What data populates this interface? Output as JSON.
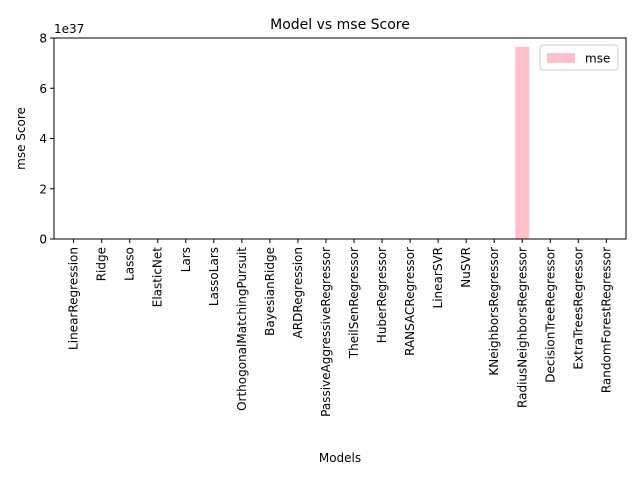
{
  "chart_data": {
    "type": "bar",
    "title": "Model vs mse Score",
    "xlabel": "Models",
    "ylabel": "mse Score",
    "axis_multiplier": "1e37",
    "ylim": [
      0,
      8e+37
    ],
    "yticks": [
      0,
      2e+37,
      4e+37,
      6e+37,
      8e+37
    ],
    "ytick_labels": [
      "0",
      "2",
      "4",
      "6",
      "8"
    ],
    "grid": false,
    "legend_position": "top-right",
    "categories": [
      "LinearRegression",
      "Ridge",
      "Lasso",
      "ElasticNet",
      "Lars",
      "LassoLars",
      "OrthogonalMatchingPursuit",
      "BayesianRidge",
      "ARDRegression",
      "PassiveAggressiveRegressor",
      "TheilSenRegressor",
      "HuberRegressor",
      "RANSACRegressor",
      "LinearSVR",
      "NuSVR",
      "KNeighborsRegressor",
      "RadiusNeighborsRegressor",
      "DecisionTreeRegressor",
      "ExtraTreesRegressor",
      "RandomForestRegressor"
    ],
    "series": [
      {
        "name": "mse",
        "color": "#ffc0cb",
        "values": [
          0,
          0,
          0,
          0,
          0,
          0,
          0,
          0,
          0,
          0,
          0,
          0,
          0,
          0,
          0,
          0,
          7.65e+37,
          0,
          0,
          0
        ]
      }
    ]
  }
}
